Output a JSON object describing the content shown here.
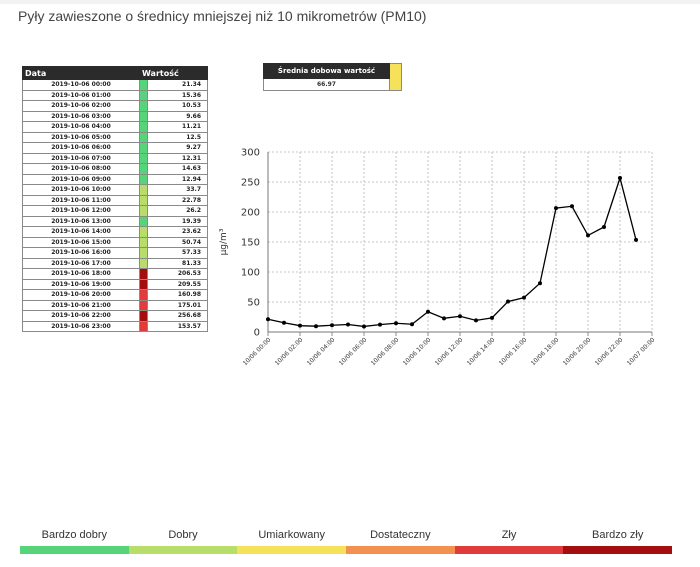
{
  "page": {
    "title": "Pyły zawieszone o średnicy mniejszej niż 10 mikrometrów (PM10)"
  },
  "table": {
    "header_date": "Data",
    "header_value": "Wartość",
    "rows": [
      {
        "date": "2019-10-06 00:00",
        "value": "21.34",
        "color": "#57d37a"
      },
      {
        "date": "2019-10-06 01:00",
        "value": "15.36",
        "color": "#57d37a"
      },
      {
        "date": "2019-10-06 02:00",
        "value": "10.53",
        "color": "#57d37a"
      },
      {
        "date": "2019-10-06 03:00",
        "value": "9.66",
        "color": "#57d37a"
      },
      {
        "date": "2019-10-06 04:00",
        "value": "11.21",
        "color": "#57d37a"
      },
      {
        "date": "2019-10-06 05:00",
        "value": "12.5",
        "color": "#57d37a"
      },
      {
        "date": "2019-10-06 06:00",
        "value": "9.27",
        "color": "#57d37a"
      },
      {
        "date": "2019-10-06 07:00",
        "value": "12.31",
        "color": "#57d37a"
      },
      {
        "date": "2019-10-06 08:00",
        "value": "14.63",
        "color": "#57d37a"
      },
      {
        "date": "2019-10-06 09:00",
        "value": "12.94",
        "color": "#57d37a"
      },
      {
        "date": "2019-10-06 10:00",
        "value": "33.7",
        "color": "#b9dd6a"
      },
      {
        "date": "2019-10-06 11:00",
        "value": "22.78",
        "color": "#b9dd6a"
      },
      {
        "date": "2019-10-06 12:00",
        "value": "26.2",
        "color": "#b9dd6a"
      },
      {
        "date": "2019-10-06 13:00",
        "value": "19.39",
        "color": "#57d37a"
      },
      {
        "date": "2019-10-06 14:00",
        "value": "23.62",
        "color": "#b9dd6a"
      },
      {
        "date": "2019-10-06 15:00",
        "value": "50.74",
        "color": "#b9dd6a"
      },
      {
        "date": "2019-10-06 16:00",
        "value": "57.33",
        "color": "#b9dd6a"
      },
      {
        "date": "2019-10-06 17:00",
        "value": "81.33",
        "color": "#b9dd6a"
      },
      {
        "date": "2019-10-06 18:00",
        "value": "206.53",
        "color": "#a50e0e"
      },
      {
        "date": "2019-10-06 19:00",
        "value": "209.55",
        "color": "#a50e0e"
      },
      {
        "date": "2019-10-06 20:00",
        "value": "160.98",
        "color": "#e03c3c"
      },
      {
        "date": "2019-10-06 21:00",
        "value": "175.01",
        "color": "#e03c3c"
      },
      {
        "date": "2019-10-06 22:00",
        "value": "256.68",
        "color": "#a50e0e"
      },
      {
        "date": "2019-10-06 23:00",
        "value": "153.57",
        "color": "#e03c3c"
      }
    ]
  },
  "daily_average": {
    "label": "Średnia dobowa wartość",
    "value": "66.97",
    "color": "#f6e25a"
  },
  "chart_data": {
    "type": "line",
    "title": "",
    "xlabel": "",
    "ylabel": "µg/m³",
    "ylim": [
      0,
      300
    ],
    "yticks": [
      0,
      50,
      100,
      150,
      200,
      250,
      300
    ],
    "grid": true,
    "x_tick_labels": [
      "10/06 00:00",
      "10/06 02:00",
      "10/06 04:00",
      "10/06 06:00",
      "10/06 08:00",
      "10/06 10:00",
      "10/06 12:00",
      "10/06 14:00",
      "10/06 16:00",
      "10/06 18:00",
      "10/06 20:00",
      "10/06 22:00",
      "10/07 00:00"
    ],
    "x": [
      "2019-10-06 00:00",
      "2019-10-06 01:00",
      "2019-10-06 02:00",
      "2019-10-06 03:00",
      "2019-10-06 04:00",
      "2019-10-06 05:00",
      "2019-10-06 06:00",
      "2019-10-06 07:00",
      "2019-10-06 08:00",
      "2019-10-06 09:00",
      "2019-10-06 10:00",
      "2019-10-06 11:00",
      "2019-10-06 12:00",
      "2019-10-06 13:00",
      "2019-10-06 14:00",
      "2019-10-06 15:00",
      "2019-10-06 16:00",
      "2019-10-06 17:00",
      "2019-10-06 18:00",
      "2019-10-06 19:00",
      "2019-10-06 20:00",
      "2019-10-06 21:00",
      "2019-10-06 22:00",
      "2019-10-06 23:00"
    ],
    "values": [
      21.34,
      15.36,
      10.53,
      9.66,
      11.21,
      12.5,
      9.27,
      12.31,
      14.63,
      12.94,
      33.7,
      22.78,
      26.2,
      19.39,
      23.62,
      50.74,
      57.33,
      81.33,
      206.53,
      209.55,
      160.98,
      175.01,
      256.68,
      153.57
    ],
    "line_color": "#000000"
  },
  "scale": {
    "items": [
      {
        "label": "Bardzo dobry",
        "color": "#57d37a"
      },
      {
        "label": "Dobry",
        "color": "#b9dd6a"
      },
      {
        "label": "Umiarkowany",
        "color": "#f6e25a"
      },
      {
        "label": "Dostateczny",
        "color": "#f39151"
      },
      {
        "label": "Zły",
        "color": "#e03c3c"
      },
      {
        "label": "Bardzo zły",
        "color": "#a50e0e"
      }
    ]
  }
}
